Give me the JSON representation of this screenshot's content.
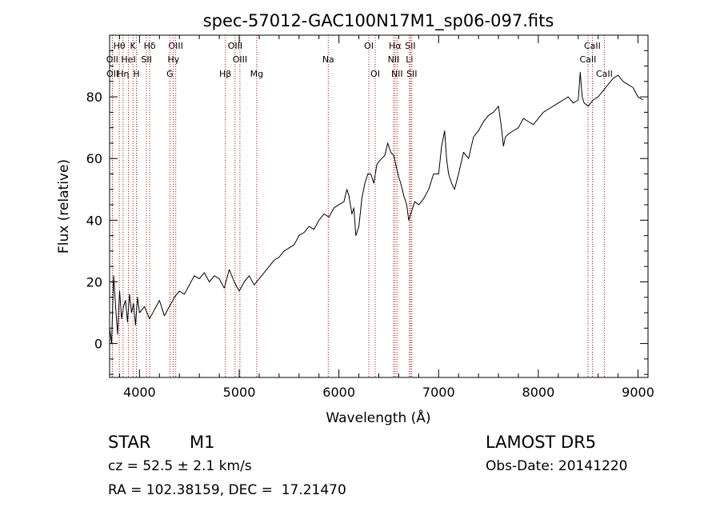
{
  "chart_data": {
    "type": "line",
    "title": "spec-57012-GAC100N17M1_sp06-097.fits",
    "xlabel": "Wavelength (Å)",
    "ylabel": "Flux (relative)",
    "xlim": [
      3700,
      9100
    ],
    "ylim": [
      -11,
      100
    ],
    "xticks": [
      4000,
      5000,
      6000,
      7000,
      8000,
      9000
    ],
    "yticks": [
      0,
      20,
      40,
      60,
      80
    ],
    "grid": false,
    "line_color": "#000000",
    "marker_color": "#aa1111",
    "series": [
      {
        "x": [
          3700,
          3720,
          3740,
          3760,
          3780,
          3800,
          3820,
          3840,
          3860,
          3880,
          3900,
          3920,
          3940,
          3960,
          3980,
          4000,
          4050,
          4100,
          4150,
          4200,
          4250,
          4300,
          4350,
          4400,
          4450,
          4500,
          4550,
          4600,
          4650,
          4700,
          4750,
          4800,
          4850,
          4900,
          4950,
          5000,
          5050,
          5100,
          5150,
          5200,
          5250,
          5300,
          5350,
          5400,
          5450,
          5500,
          5550,
          5600,
          5650,
          5700,
          5750,
          5800,
          5850,
          5900,
          5950,
          6000,
          6050,
          6080,
          6100,
          6130,
          6150,
          6170,
          6200,
          6230,
          6260,
          6290,
          6320,
          6350,
          6380,
          6400,
          6430,
          6460,
          6490,
          6520,
          6550,
          6570,
          6600,
          6620,
          6650,
          6680,
          6700,
          6720,
          6740,
          6760,
          6800,
          6850,
          6900,
          6950,
          7000,
          7030,
          7060,
          7080,
          7100,
          7130,
          7160,
          7200,
          7250,
          7300,
          7350,
          7400,
          7450,
          7500,
          7550,
          7600,
          7630,
          7650,
          7670,
          7700,
          7750,
          7800,
          7850,
          7900,
          7950,
          8000,
          8050,
          8100,
          8150,
          8200,
          8250,
          8300,
          8350,
          8400,
          8420,
          8440,
          8460,
          8500,
          8550,
          8600,
          8650,
          8700,
          8750,
          8800,
          8850,
          8900,
          8950,
          9000,
          9050
        ],
        "values": [
          5,
          0,
          22,
          12,
          3,
          17,
          8,
          12,
          14,
          7,
          16,
          10,
          13,
          6,
          15,
          10,
          12,
          8,
          11,
          14,
          9,
          12,
          15,
          17,
          16,
          19,
          22,
          21,
          23,
          20,
          22,
          21,
          18,
          24,
          20,
          17,
          20,
          22,
          19,
          21,
          23,
          25,
          27,
          28,
          30,
          31,
          32,
          35,
          36,
          38,
          37,
          40,
          42,
          41,
          44,
          45,
          46,
          50,
          48,
          42,
          44,
          35,
          38,
          47,
          52,
          55,
          55,
          52,
          58,
          59,
          60,
          61,
          65,
          62,
          61,
          58,
          54,
          52,
          48,
          45,
          40,
          42,
          44,
          46,
          45,
          47,
          50,
          55,
          55,
          64,
          69,
          60,
          55,
          52,
          50,
          55,
          62,
          60,
          67,
          69,
          72,
          74,
          75,
          77,
          70,
          64,
          67,
          68,
          69,
          70,
          73,
          72,
          71,
          73,
          75,
          76,
          77,
          78,
          79,
          80,
          78,
          79,
          88,
          80,
          78,
          77,
          79,
          80,
          82,
          84,
          86,
          87,
          85,
          84,
          83,
          80,
          79
        ]
      }
    ],
    "lines": [
      {
        "label": "Hθ",
        "x": 3797,
        "row": 0
      },
      {
        "label": "K",
        "x": 3934,
        "row": 0
      },
      {
        "label": "Hδ",
        "x": 4102,
        "row": 0
      },
      {
        "label": "OIII",
        "x": 4363,
        "row": 0
      },
      {
        "label": "OIII",
        "x": 4959,
        "row": 0
      },
      {
        "label": "OI",
        "x": 6300,
        "row": 0
      },
      {
        "label": "Hα",
        "x": 6563,
        "row": 0
      },
      {
        "label": "SII",
        "x": 6716,
        "row": 0
      },
      {
        "label": "CaII",
        "x": 8542,
        "row": 0
      },
      {
        "label": "OII",
        "x": 3727,
        "row": 1
      },
      {
        "label": "HeI",
        "x": 3889,
        "row": 1
      },
      {
        "label": "SII",
        "x": 4070,
        "row": 1
      },
      {
        "label": "Hγ",
        "x": 4340,
        "row": 1
      },
      {
        "label": "OIII",
        "x": 5007,
        "row": 1
      },
      {
        "label": "Na",
        "x": 5893,
        "row": 1
      },
      {
        "label": "NII",
        "x": 6548,
        "row": 1
      },
      {
        "label": "Li",
        "x": 6708,
        "row": 1
      },
      {
        "label": "CaII",
        "x": 8498,
        "row": 1
      },
      {
        "label": "OII",
        "x": 3729,
        "row": 2
      },
      {
        "label": "Hη",
        "x": 3835,
        "row": 2
      },
      {
        "label": "H",
        "x": 3969,
        "row": 2
      },
      {
        "label": "G",
        "x": 4305,
        "row": 2
      },
      {
        "label": "Hβ",
        "x": 4861,
        "row": 2
      },
      {
        "label": "Mg",
        "x": 5175,
        "row": 2
      },
      {
        "label": "OI",
        "x": 6364,
        "row": 2
      },
      {
        "label": "NII",
        "x": 6583,
        "row": 2
      },
      {
        "label": "SII",
        "x": 6731,
        "row": 2
      },
      {
        "label": "CaII",
        "x": 8662,
        "row": 2
      }
    ]
  },
  "info": {
    "object_class": "STAR",
    "subclass": "M1",
    "survey": "LAMOST DR5",
    "cz": "cz = 52.5 ± 2.1 km/s",
    "obs_date": "Obs-Date: 20141220",
    "coords": "RA = 102.38159, DEC =  17.21470"
  }
}
